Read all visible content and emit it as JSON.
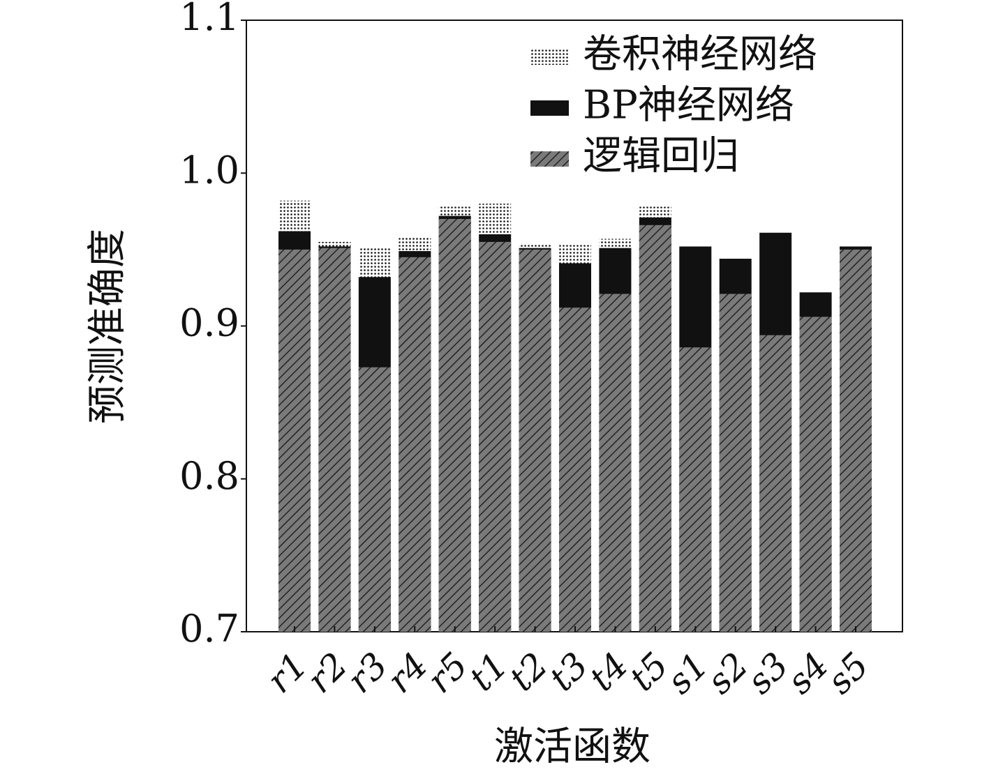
{
  "chart_data": {
    "type": "bar",
    "overlap": true,
    "xlabel": "激活函数",
    "ylabel": "预测准确度",
    "categories": [
      "r1",
      "r2",
      "r3",
      "r4",
      "r5",
      "t1",
      "t2",
      "t3",
      "t4",
      "t5",
      "s1",
      "s2",
      "s3",
      "s4",
      "s5"
    ],
    "series": [
      {
        "name": "卷积神经网络",
        "color": "#ffffff",
        "pattern": "dots",
        "values": [
          0.982,
          0.955,
          0.951,
          0.958,
          0.978,
          0.98,
          0.954,
          0.953,
          0.957,
          0.978,
          null,
          null,
          null,
          null,
          null
        ]
      },
      {
        "name": "BP神经网络",
        "color": "#111111",
        "pattern": "solid",
        "values": [
          0.962,
          0.952,
          0.932,
          0.949,
          0.972,
          0.96,
          0.951,
          0.941,
          0.951,
          0.971,
          0.952,
          0.944,
          0.961,
          0.922,
          0.952
        ]
      },
      {
        "name": "逻辑回归",
        "color": "#7a7a7a",
        "pattern": "hatch",
        "values": [
          0.95,
          0.951,
          0.873,
          0.945,
          0.97,
          0.955,
          0.95,
          0.912,
          0.921,
          0.966,
          0.886,
          0.921,
          0.894,
          0.906,
          0.95
        ]
      }
    ],
    "ylim": [
      0.7,
      1.1
    ],
    "yticks": [
      0.7,
      0.8,
      0.9,
      {
        "value": 1,
        "label": "1.0"
      },
      1.1
    ],
    "legend": "upper right"
  }
}
